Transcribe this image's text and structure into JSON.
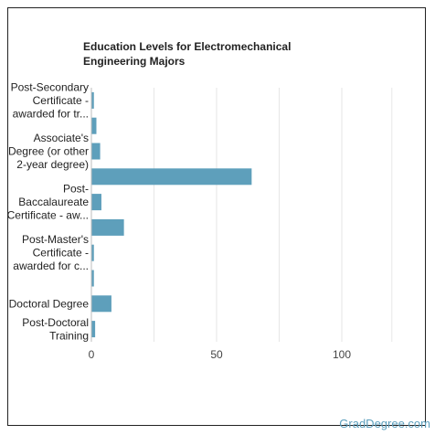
{
  "chart_data": {
    "type": "bar",
    "orientation": "horizontal",
    "title": "Education Levels for Electromechanical Engineering Majors",
    "xlim": [
      0,
      120
    ],
    "xticks": [
      0,
      50,
      100
    ],
    "grid": true,
    "categories": [
      [
        "Post-Secondary",
        "Certificate -",
        "awarded for tr..."
      ],
      [],
      [
        "Associate's",
        "Degree (or other",
        "2-year degree)"
      ],
      [],
      [
        "Post-",
        "Baccalaureate",
        "Certificate - aw..."
      ],
      [],
      [
        "Post-Master's",
        "Certificate -",
        "awarded for c..."
      ],
      [],
      [
        "Doctoral Degree"
      ],
      [
        "Post-Doctoral",
        "Training"
      ]
    ],
    "values": [
      1,
      2,
      3.5,
      64,
      4,
      13,
      1,
      1,
      8,
      1.5
    ],
    "bar_color": "#5e9fbb"
  },
  "watermark": "GradDegree.com"
}
